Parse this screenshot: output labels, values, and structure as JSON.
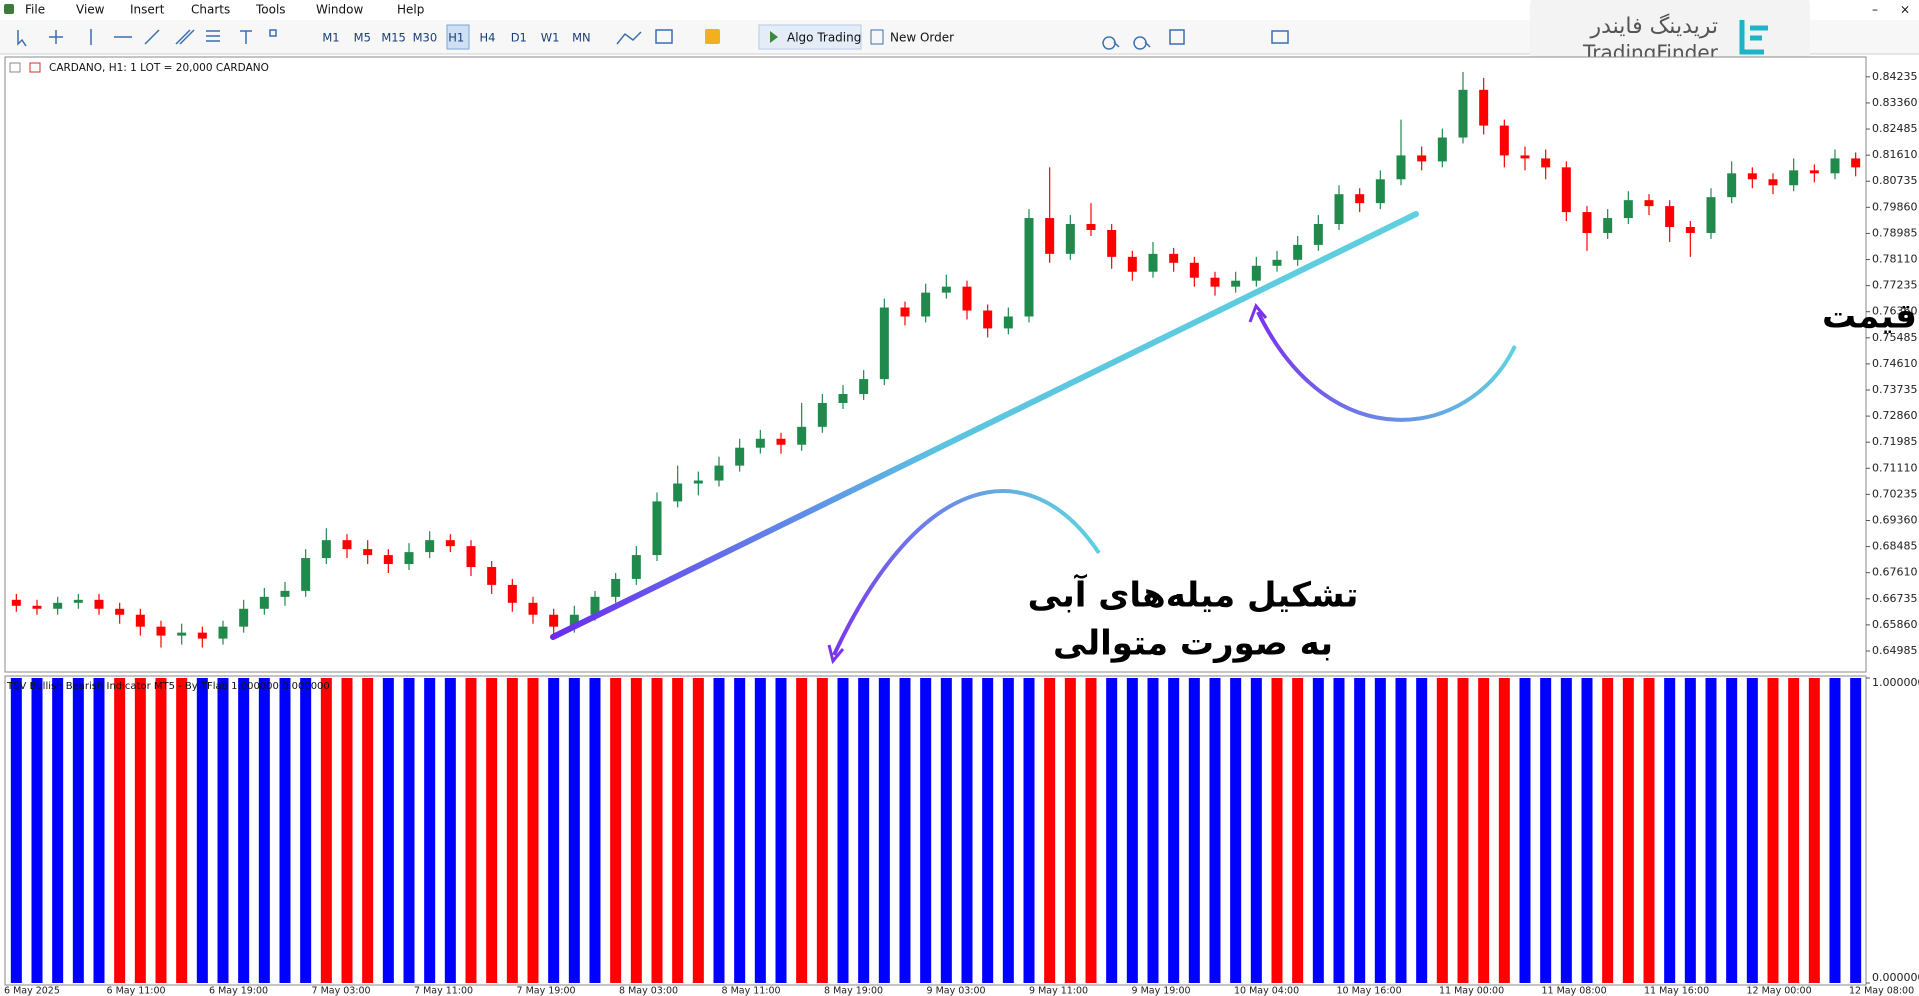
{
  "menu": [
    "File",
    "View",
    "Insert",
    "Charts",
    "Tools",
    "Window",
    "Help"
  ],
  "toolbar": {
    "timeframes": [
      "M1",
      "M5",
      "M15",
      "M30",
      "H1",
      "H4",
      "D1",
      "W1",
      "MN"
    ],
    "algo_trading": "Algo Trading",
    "new_order": "New Order"
  },
  "logo": {
    "persian": "تریدینگ فایندر",
    "latin": "TradingFinder"
  },
  "annotations": {
    "uptrend": "حرکت صعودی قیمت",
    "bars_line1": "تشکیل میله‌های آبی",
    "bars_line2": "به صورت متوالی"
  },
  "chart_data": [
    {
      "type": "candlestick",
      "title": "CARDANO, H1:  1 LOT = 20,000 CARDANO",
      "bull_color": "#1f8a4c",
      "bear_color": "#ff0000",
      "ylim": [
        0.6428,
        0.849
      ],
      "yticks": [
        0.84235,
        {
          "value": 0.8336,
          "label": "0.83360"
        },
        0.82485,
        {
          "value": 0.8161,
          "label": "0.81610"
        },
        0.80735,
        {
          "value": 0.7986,
          "label": "0.79860"
        },
        0.78985,
        {
          "value": 0.7811,
          "label": "0.78110"
        },
        0.77235,
        {
          "value": 0.7636,
          "label": "0.76360"
        },
        0.75485,
        {
          "value": 0.7461,
          "label": "0.74610"
        },
        0.73735,
        {
          "value": 0.7286,
          "label": "0.72860"
        },
        0.71985,
        {
          "value": 0.7111,
          "label": "0.71110"
        },
        0.70235,
        {
          "value": 0.6936,
          "label": "0.69360"
        },
        0.68485,
        {
          "value": 0.6761,
          "label": "0.67610"
        },
        0.66735,
        {
          "value": 0.6586,
          "label": "0.65860"
        },
        0.64985
      ],
      "x_labels": [
        "6 May 2025",
        "6 May 11:00",
        "6 May 19:00",
        "7 May 03:00",
        "7 May 11:00",
        "7 May 19:00",
        "8 May 03:00",
        "8 May 11:00",
        "8 May 19:00",
        "9 May 03:00",
        "9 May 11:00",
        "9 May 19:00",
        "10 May 04:00",
        "10 May 16:00",
        "11 May 00:00",
        "11 May 08:00",
        "11 May 16:00",
        "12 May 00:00",
        "12 May 08:00"
      ],
      "ohlc": [
        [
          0.667,
          0.669,
          0.663,
          0.665
        ],
        [
          0.665,
          0.667,
          0.662,
          0.664
        ],
        [
          0.664,
          0.668,
          0.662,
          0.666
        ],
        [
          0.666,
          0.669,
          0.664,
          0.667
        ],
        [
          0.667,
          0.669,
          0.662,
          0.664
        ],
        [
          0.664,
          0.666,
          0.659,
          0.662
        ],
        [
          0.662,
          0.664,
          0.655,
          0.658
        ],
        [
          0.658,
          0.66,
          0.651,
          0.655
        ],
        [
          0.655,
          0.659,
          0.652,
          0.656
        ],
        [
          0.656,
          0.658,
          0.651,
          0.654
        ],
        [
          0.654,
          0.66,
          0.652,
          0.658
        ],
        [
          0.658,
          0.667,
          0.656,
          0.664
        ],
        [
          0.664,
          0.671,
          0.662,
          0.668
        ],
        [
          0.668,
          0.673,
          0.665,
          0.67
        ],
        [
          0.67,
          0.684,
          0.668,
          0.681
        ],
        [
          0.681,
          0.691,
          0.679,
          0.687
        ],
        [
          0.687,
          0.689,
          0.681,
          0.684
        ],
        [
          0.684,
          0.687,
          0.679,
          0.682
        ],
        [
          0.682,
          0.684,
          0.676,
          0.679
        ],
        [
          0.679,
          0.686,
          0.677,
          0.683
        ],
        [
          0.683,
          0.69,
          0.681,
          0.687
        ],
        [
          0.687,
          0.689,
          0.683,
          0.685
        ],
        [
          0.685,
          0.687,
          0.675,
          0.678
        ],
        [
          0.678,
          0.68,
          0.669,
          0.672
        ],
        [
          0.672,
          0.674,
          0.663,
          0.666
        ],
        [
          0.666,
          0.668,
          0.659,
          0.662
        ],
        [
          0.662,
          0.664,
          0.655,
          0.658
        ],
        [
          0.658,
          0.665,
          0.656,
          0.662
        ],
        [
          0.662,
          0.67,
          0.66,
          0.668
        ],
        [
          0.668,
          0.676,
          0.666,
          0.674
        ],
        [
          0.674,
          0.685,
          0.672,
          0.682
        ],
        [
          0.682,
          0.703,
          0.68,
          0.7
        ],
        [
          0.7,
          0.712,
          0.698,
          0.706
        ],
        [
          0.706,
          0.71,
          0.702,
          0.707
        ],
        [
          0.707,
          0.715,
          0.705,
          0.712
        ],
        [
          0.712,
          0.721,
          0.71,
          0.718
        ],
        [
          0.718,
          0.724,
          0.716,
          0.721
        ],
        [
          0.721,
          0.723,
          0.716,
          0.719
        ],
        [
          0.719,
          0.733,
          0.717,
          0.725
        ],
        [
          0.725,
          0.736,
          0.723,
          0.733
        ],
        [
          0.733,
          0.739,
          0.731,
          0.736
        ],
        [
          0.736,
          0.744,
          0.734,
          0.741
        ],
        [
          0.741,
          0.768,
          0.739,
          0.765
        ],
        [
          0.765,
          0.767,
          0.759,
          0.762
        ],
        [
          0.762,
          0.773,
          0.76,
          0.77
        ],
        [
          0.77,
          0.776,
          0.768,
          0.772
        ],
        [
          0.772,
          0.774,
          0.761,
          0.764
        ],
        [
          0.764,
          0.766,
          0.755,
          0.758
        ],
        [
          0.758,
          0.765,
          0.756,
          0.762
        ],
        [
          0.762,
          0.798,
          0.76,
          0.795
        ],
        [
          0.795,
          0.812,
          0.78,
          0.783
        ],
        [
          0.783,
          0.796,
          0.781,
          0.793
        ],
        [
          0.793,
          0.8,
          0.789,
          0.791
        ],
        [
          0.791,
          0.793,
          0.778,
          0.782
        ],
        [
          0.782,
          0.784,
          0.774,
          0.777
        ],
        [
          0.777,
          0.787,
          0.775,
          0.783
        ],
        [
          0.783,
          0.785,
          0.777,
          0.78
        ],
        [
          0.78,
          0.782,
          0.772,
          0.775
        ],
        [
          0.775,
          0.777,
          0.769,
          0.772
        ],
        [
          0.772,
          0.777,
          0.77,
          0.774
        ],
        [
          0.774,
          0.782,
          0.772,
          0.779
        ],
        [
          0.779,
          0.784,
          0.777,
          0.781
        ],
        [
          0.781,
          0.789,
          0.779,
          0.786
        ],
        [
          0.786,
          0.796,
          0.784,
          0.793
        ],
        [
          0.793,
          0.806,
          0.791,
          0.803
        ],
        [
          0.803,
          0.805,
          0.797,
          0.8
        ],
        [
          0.8,
          0.811,
          0.798,
          0.808
        ],
        [
          0.808,
          0.828,
          0.806,
          0.816
        ],
        [
          0.816,
          0.819,
          0.811,
          0.814
        ],
        [
          0.814,
          0.825,
          0.812,
          0.822
        ],
        [
          0.822,
          0.844,
          0.82,
          0.838
        ],
        [
          0.838,
          0.842,
          0.823,
          0.826
        ],
        [
          0.826,
          0.828,
          0.812,
          0.816
        ],
        [
          0.816,
          0.819,
          0.811,
          0.815
        ],
        [
          0.815,
          0.818,
          0.808,
          0.812
        ],
        [
          0.812,
          0.814,
          0.794,
          0.797
        ],
        [
          0.797,
          0.799,
          0.784,
          0.79
        ],
        [
          0.79,
          0.798,
          0.788,
          0.795
        ],
        [
          0.795,
          0.804,
          0.793,
          0.801
        ],
        [
          0.801,
          0.803,
          0.796,
          0.799
        ],
        [
          0.799,
          0.801,
          0.787,
          0.792
        ],
        [
          0.792,
          0.794,
          0.782,
          0.79
        ],
        [
          0.79,
          0.805,
          0.788,
          0.802
        ],
        [
          0.802,
          0.814,
          0.8,
          0.81
        ],
        [
          0.81,
          0.812,
          0.805,
          0.808
        ],
        [
          0.808,
          0.81,
          0.803,
          0.806
        ],
        [
          0.806,
          0.815,
          0.804,
          0.811
        ],
        [
          0.811,
          0.813,
          0.807,
          0.81
        ],
        [
          0.81,
          0.818,
          0.808,
          0.815
        ],
        [
          0.815,
          0.817,
          0.809,
          0.812
        ]
      ]
    },
    {
      "type": "bar",
      "title": "TSV Bullish Bearish Indicator MT5 - By TFlab 1.000000 0.000000",
      "ylim": [
        0,
        1
      ],
      "yticks": [
        {
          "value": 1,
          "label": "1.000000"
        },
        {
          "value": 0,
          "label": "0.000000"
        }
      ],
      "bars": [
        {
          "color": "#0000ff",
          "count": 5,
          "value": 1
        },
        {
          "color": "#ff0000",
          "count": 4,
          "value": 1
        },
        {
          "color": "#0000ff",
          "count": 6,
          "value": 1
        },
        {
          "color": "#ff0000",
          "count": 3,
          "value": 1
        },
        {
          "color": "#0000ff",
          "count": 4,
          "value": 1
        },
        {
          "color": "#ff0000",
          "count": 4,
          "value": 1
        },
        {
          "color": "#0000ff",
          "count": 3,
          "value": 1
        },
        {
          "color": "#ff0000",
          "count": 5,
          "value": 1
        },
        {
          "color": "#0000ff",
          "count": 4,
          "value": 1
        },
        {
          "color": "#ff0000",
          "count": 2,
          "value": 1
        },
        {
          "color": "#0000ff",
          "count": 10,
          "value": 1
        },
        {
          "color": "#ff0000",
          "count": 3,
          "value": 1
        },
        {
          "color": "#0000ff",
          "count": 8,
          "value": 1
        },
        {
          "color": "#ff0000",
          "count": 2,
          "value": 1
        },
        {
          "color": "#0000ff",
          "count": 6,
          "value": 1
        },
        {
          "color": "#ff0000",
          "count": 4,
          "value": 1
        },
        {
          "color": "#0000ff",
          "count": 4,
          "value": 1
        },
        {
          "color": "#ff0000",
          "count": 3,
          "value": 1
        },
        {
          "color": "#0000ff",
          "count": 5,
          "value": 1
        },
        {
          "color": "#ff0000",
          "count": 3,
          "value": 1
        },
        {
          "color": "#0000ff",
          "count": 2,
          "value": 1
        }
      ]
    }
  ]
}
